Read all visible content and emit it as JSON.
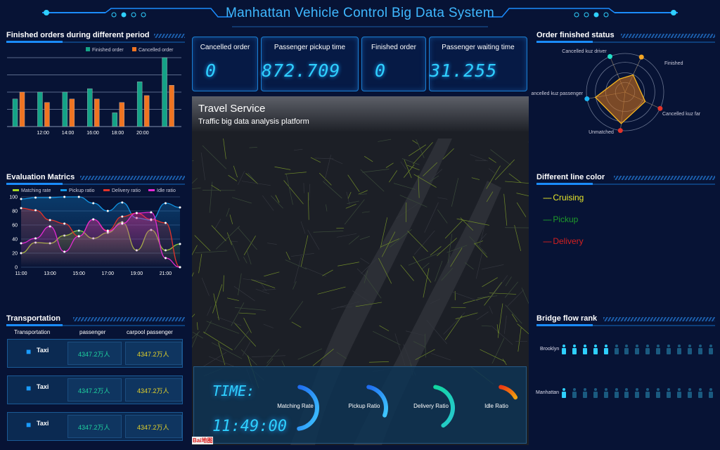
{
  "header": {
    "title": "Manhattan Vehicle Control Big Data System"
  },
  "colors": {
    "accent": "#1a8cff",
    "finished": "#14a387",
    "cancelled": "#ef7422",
    "matching": "#a4d623",
    "pickup": "#1296e6",
    "delivery": "#e2332a",
    "idle": "#e32ad3"
  },
  "panels": {
    "finished_orders": "Finished orders during different period",
    "evaluation": "Evaluation Matrics",
    "transportation": "Transportation",
    "order_status": "Order finished status",
    "line_color": "Different line color",
    "bridge": "Bridge flow rank"
  },
  "kpis": [
    {
      "label": "Cancelled order",
      "value": "0"
    },
    {
      "label": "Passenger pickup time",
      "value": "872.709"
    },
    {
      "label": "Finished order",
      "value": "0"
    },
    {
      "label": "Passenger waiting time",
      "value": "31.255"
    }
  ],
  "map": {
    "title": "Travel Service",
    "subtitle": "Traffic big data analysis platform",
    "logo": "Bai地图"
  },
  "time_panel": {
    "label": "TIME:",
    "value": "11:49:00",
    "gauges": [
      {
        "label": "Matching Rate",
        "value": 45,
        "color_from": "#1f6cf0",
        "color_to": "#3fc8ff"
      },
      {
        "label": "Pickup Ratio",
        "value": 28,
        "color_from": "#1f6cf0",
        "color_to": "#3fc8ff"
      },
      {
        "label": "Delivery Ratio",
        "value": 38,
        "color_from": "#11d6a0",
        "color_to": "#28c8d0"
      },
      {
        "label": "Idle Ratio",
        "value": 14,
        "color_from": "#ee3a10",
        "color_to": "#f0a010"
      }
    ]
  },
  "transportation": {
    "headers": [
      "Transportation",
      "passenger",
      "carpool passenger"
    ],
    "rows": [
      {
        "type": "Taxi",
        "icon": "truck-icon",
        "passenger": "4347.2万人",
        "carpool": "4347.2万人"
      },
      {
        "type": "Taxi",
        "icon": "truck-icon",
        "passenger": "4347.2万人",
        "carpool": "4347.2万人"
      },
      {
        "type": "Taxi",
        "icon": "truck-icon",
        "passenger": "4347.2万人",
        "carpool": "4347.2万人"
      }
    ]
  },
  "line_colors": [
    {
      "label": "Cruising",
      "color": "#e6e62a"
    },
    {
      "label": "Pickup",
      "color": "#1e9a2a"
    },
    {
      "label": "Delivery",
      "color": "#d42020"
    }
  ],
  "bridge": {
    "total": 15,
    "rows": [
      {
        "label": "Brooklyn",
        "lit": 5
      },
      {
        "label": "Manhattan",
        "lit": 1
      }
    ]
  },
  "chart_data": [
    {
      "type": "bar",
      "title": "Finished orders during different period",
      "categories": [
        "",
        "12:00",
        "14:00",
        "16:00",
        "18:00",
        "20:00",
        ""
      ],
      "ylim": [
        0,
        4
      ],
      "grid": true,
      "legend": "top-right",
      "series": [
        {
          "name": "Finished order",
          "values": [
            1.6,
            2,
            2,
            2.2,
            0.8,
            2.6,
            4
          ]
        },
        {
          "name": "Cancelled order",
          "values": [
            2,
            1.4,
            1.6,
            1.6,
            1.4,
            1.8,
            2.4
          ]
        }
      ]
    },
    {
      "type": "line",
      "title": "Evaluation Matrics",
      "x": [
        "11:00",
        "12:00",
        "13:00",
        "14:00",
        "15:00",
        "16:00",
        "17:00",
        "18:00",
        "19:00",
        "20:00",
        "21:00",
        "22:00"
      ],
      "xticklabels": [
        "11:00",
        "13:00",
        "15:00",
        "17:00",
        "19:00",
        "21:00"
      ],
      "ylim": [
        0,
        100
      ],
      "yticks": [
        0,
        20,
        40,
        60,
        80,
        100
      ],
      "grid": true,
      "legend": "top",
      "series": [
        {
          "name": "Matching rate",
          "values": [
            20,
            35,
            34,
            45,
            52,
            41,
            49,
            64,
            24,
            53,
            24,
            33
          ]
        },
        {
          "name": "Pickup ratio",
          "values": [
            97,
            99,
            99,
            100,
            100,
            91,
            80,
            92,
            70,
            67,
            91,
            85
          ]
        },
        {
          "name": "Delivery ratio",
          "values": [
            84,
            81,
            67,
            62,
            44,
            68,
            52,
            72,
            77,
            68,
            63,
            0
          ]
        },
        {
          "name": "Idle ratio",
          "values": [
            34,
            41,
            58,
            22,
            44,
            68,
            51,
            62,
            77,
            78,
            13,
            0
          ]
        }
      ]
    },
    {
      "type": "radar",
      "title": "Order finished status",
      "indicators": [
        "Finished",
        "Cancelled kuz far",
        "Unmatched",
        "Cancelled kuz passenger",
        "Cancelled kuz driver"
      ],
      "indicator_colors": [
        "#f5a623",
        "#e2332a",
        "#e2332a",
        "#1ab6f5",
        "#22e0c8"
      ],
      "values": [
        0.6,
        0.7,
        1.0,
        0.95,
        0.45
      ]
    }
  ]
}
